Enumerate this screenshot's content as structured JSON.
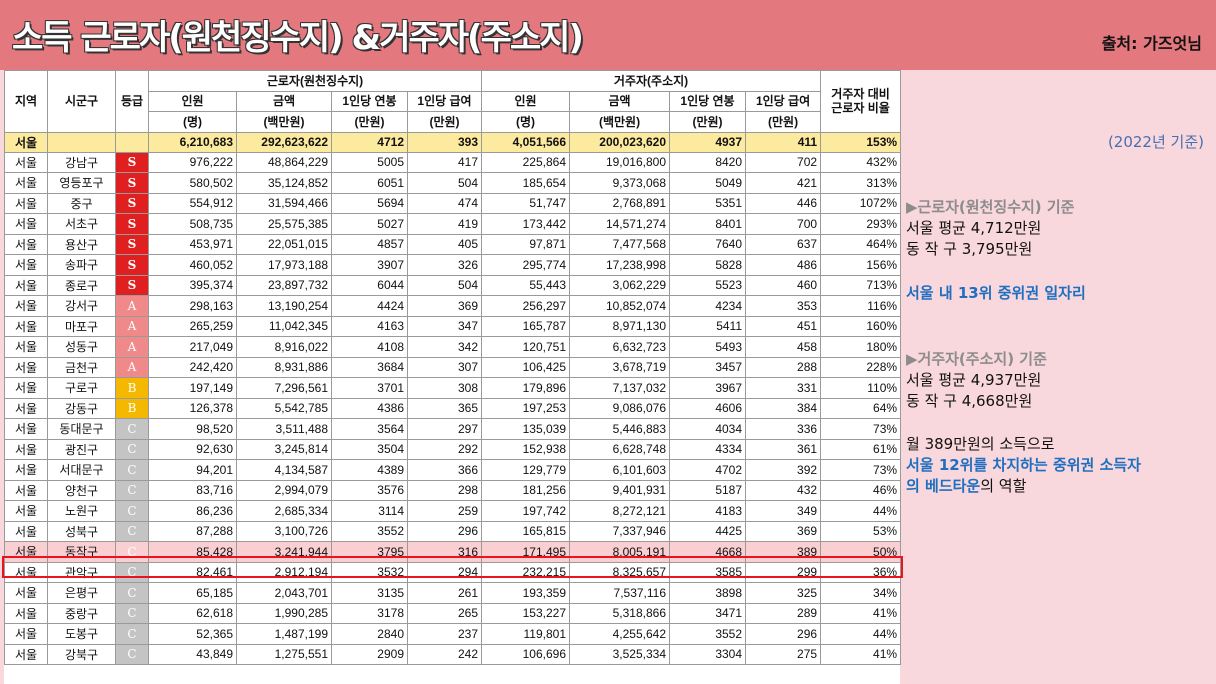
{
  "title": "소득 근로자(원천징수지) &거주자(주소지)",
  "source": "출처: 가즈엇님",
  "basis": "(2022년 기준)",
  "headers": {
    "region": "지역",
    "district": "시군구",
    "grade": "등급",
    "worker_group": "근로자(원천징수지)",
    "resident_group": "거주자(주소지)",
    "ratio": [
      "거주자 대비",
      "근로자 비율"
    ],
    "sub": [
      [
        "인원",
        "(명)"
      ],
      [
        "금액",
        "(백만원)"
      ],
      [
        "1인당 연봉",
        "(만원)"
      ],
      [
        "1인당 급여",
        "(만원)"
      ],
      [
        "인원",
        "(명)"
      ],
      [
        "금액",
        "(백만원)"
      ],
      [
        "1인당 연봉",
        "(만원)"
      ],
      [
        "1인당 급여",
        "(만원)"
      ]
    ]
  },
  "total": [
    "서울",
    "",
    "",
    "6,210,683",
    "292,623,622",
    "4712",
    "393",
    "4,051,566",
    "200,023,620",
    "4937",
    "411",
    "153%"
  ],
  "rows": [
    [
      "서울",
      "강남구",
      "S",
      "976,222",
      "48,864,229",
      "5005",
      "417",
      "225,864",
      "19,016,800",
      "8420",
      "702",
      "432%"
    ],
    [
      "서울",
      "영등포구",
      "S",
      "580,502",
      "35,124,852",
      "6051",
      "504",
      "185,654",
      "9,373,068",
      "5049",
      "421",
      "313%"
    ],
    [
      "서울",
      "중구",
      "S",
      "554,912",
      "31,594,466",
      "5694",
      "474",
      "51,747",
      "2,768,891",
      "5351",
      "446",
      "1072%"
    ],
    [
      "서울",
      "서초구",
      "S",
      "508,735",
      "25,575,385",
      "5027",
      "419",
      "173,442",
      "14,571,274",
      "8401",
      "700",
      "293%"
    ],
    [
      "서울",
      "용산구",
      "S",
      "453,971",
      "22,051,015",
      "4857",
      "405",
      "97,871",
      "7,477,568",
      "7640",
      "637",
      "464%"
    ],
    [
      "서울",
      "송파구",
      "S",
      "460,052",
      "17,973,188",
      "3907",
      "326",
      "295,774",
      "17,238,998",
      "5828",
      "486",
      "156%"
    ],
    [
      "서울",
      "종로구",
      "S",
      "395,374",
      "23,897,732",
      "6044",
      "504",
      "55,443",
      "3,062,229",
      "5523",
      "460",
      "713%"
    ],
    [
      "서울",
      "강서구",
      "A",
      "298,163",
      "13,190,254",
      "4424",
      "369",
      "256,297",
      "10,852,074",
      "4234",
      "353",
      "116%"
    ],
    [
      "서울",
      "마포구",
      "A",
      "265,259",
      "11,042,345",
      "4163",
      "347",
      "165,787",
      "8,971,130",
      "5411",
      "451",
      "160%"
    ],
    [
      "서울",
      "성동구",
      "A",
      "217,049",
      "8,916,022",
      "4108",
      "342",
      "120,751",
      "6,632,723",
      "5493",
      "458",
      "180%"
    ],
    [
      "서울",
      "금천구",
      "A",
      "242,420",
      "8,931,886",
      "3684",
      "307",
      "106,425",
      "3,678,719",
      "3457",
      "288",
      "228%"
    ],
    [
      "서울",
      "구로구",
      "B",
      "197,149",
      "7,296,561",
      "3701",
      "308",
      "179,896",
      "7,137,032",
      "3967",
      "331",
      "110%"
    ],
    [
      "서울",
      "강동구",
      "B",
      "126,378",
      "5,542,785",
      "4386",
      "365",
      "197,253",
      "9,086,076",
      "4606",
      "384",
      "64%"
    ],
    [
      "서울",
      "동대문구",
      "C",
      "98,520",
      "3,511,488",
      "3564",
      "297",
      "135,039",
      "5,446,883",
      "4034",
      "336",
      "73%"
    ],
    [
      "서울",
      "광진구",
      "C",
      "92,630",
      "3,245,814",
      "3504",
      "292",
      "152,938",
      "6,628,748",
      "4334",
      "361",
      "61%"
    ],
    [
      "서울",
      "서대문구",
      "C",
      "94,201",
      "4,134,587",
      "4389",
      "366",
      "129,779",
      "6,101,603",
      "4702",
      "392",
      "73%"
    ],
    [
      "서울",
      "양천구",
      "C",
      "83,716",
      "2,994,079",
      "3576",
      "298",
      "181,256",
      "9,401,931",
      "5187",
      "432",
      "46%"
    ],
    [
      "서울",
      "노원구",
      "C",
      "86,236",
      "2,685,334",
      "3114",
      "259",
      "197,742",
      "8,272,121",
      "4183",
      "349",
      "44%"
    ],
    [
      "서울",
      "성북구",
      "C",
      "87,288",
      "3,100,726",
      "3552",
      "296",
      "165,815",
      "7,337,946",
      "4425",
      "369",
      "53%"
    ],
    [
      "서울",
      "동작구",
      "C",
      "85,428",
      "3,241,944",
      "3795",
      "316",
      "171,495",
      "8,005,191",
      "4668",
      "389",
      "50%"
    ],
    [
      "서울",
      "관악구",
      "C",
      "82,461",
      "2,912,194",
      "3532",
      "294",
      "232,215",
      "8,325,657",
      "3585",
      "299",
      "36%"
    ],
    [
      "서울",
      "은평구",
      "C",
      "65,185",
      "2,043,701",
      "3135",
      "261",
      "193,359",
      "7,537,116",
      "3898",
      "325",
      "34%"
    ],
    [
      "서울",
      "중랑구",
      "C",
      "62,618",
      "1,990,285",
      "3178",
      "265",
      "153,227",
      "5,318,866",
      "3471",
      "289",
      "41%"
    ],
    [
      "서울",
      "도봉구",
      "C",
      "52,365",
      "1,487,199",
      "2840",
      "237",
      "119,801",
      "4,255,642",
      "3552",
      "296",
      "44%"
    ],
    [
      "서울",
      "강북구",
      "C",
      "43,849",
      "1,275,551",
      "2909",
      "242",
      "106,696",
      "3,525,334",
      "3304",
      "275",
      "41%"
    ]
  ],
  "highlight_row_index": 19,
  "notes": {
    "worker_heading": "▶근로자(원천징수지) 기준",
    "worker_line1": "서울 평균 4,712만원",
    "worker_line2": "동  작  구  3,795만원",
    "worker_rank": "서울 내 13위 중위권 일자리",
    "resident_heading": "▶거주자(주소지) 기준",
    "resident_line1": "서울 평균 4,937만원",
    "resident_line2": "동  작   구 4,668만원",
    "income_line": "월 389만원의 소득으로",
    "income_rank_line1": "서울 12위를 차지하는 중위권 소득자",
    "income_rank_line2_blue": "의 베드타운",
    "income_rank_line2_rest": "의 역할"
  },
  "colors": {
    "header_bg": "#e3787f",
    "panel_bg": "#f8d7dd",
    "total_row_bg": "#fcea9e",
    "grade_S": "#e02020",
    "grade_A": "#f08a8a",
    "grade_B": "#f5b800",
    "grade_C": "#c4c4c4",
    "highlight_border": "#e8141e",
    "accent_blue": "#1f6fc0"
  }
}
